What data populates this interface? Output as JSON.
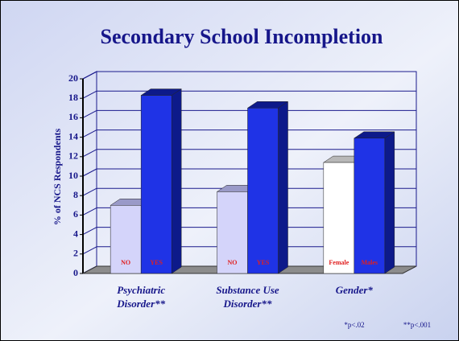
{
  "chart_data": {
    "type": "bar3d",
    "title": "Secondary School Incompletion",
    "y_label": "% of NCS Respondents",
    "categories": [
      "Psychiatric Disorder**",
      "Substance Use Disorder**",
      "Gender*"
    ],
    "series": [
      {
        "labels": [
          "NO",
          "NO",
          "Female"
        ],
        "colors": [
          "#d4d4fa",
          "#d4d4fa",
          "#ffffff"
        ],
        "values": [
          7,
          8.4,
          11.4
        ]
      },
      {
        "labels": [
          "YES",
          "YES",
          "Males"
        ],
        "colors": [
          "#1f33e6",
          "#1f33e6",
          "#1f33e6"
        ],
        "values": [
          18.3,
          17,
          13.9
        ]
      }
    ],
    "ylim": [
      0,
      20
    ],
    "yticks": [
      0,
      2,
      4,
      6,
      8,
      10,
      12,
      14,
      16,
      18,
      20
    ],
    "grid": true,
    "footnotes": [
      "*p<.02",
      "**p<.001"
    ]
  }
}
